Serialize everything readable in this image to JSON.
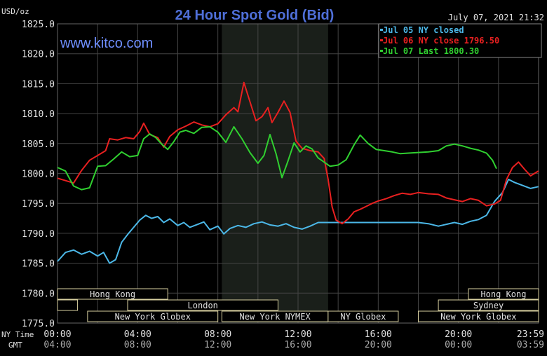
{
  "header": {
    "title": "24 Hour Spot Gold (Bid)",
    "unit": "USD/oz",
    "timestamp": "July 07, 2021 21:32",
    "brand": "www.kitco.com"
  },
  "colors": {
    "background": "#000000",
    "grid": "#444444",
    "title": "#4f6fd8",
    "brand": "#6f8fff",
    "text": "#e0e0e0",
    "shade": "#1a1f1a",
    "session": "#d8d0a0"
  },
  "time_axis": {
    "ny_label": "NY Time",
    "gmt_label": "GMT",
    "ny_ticks": [
      "00:00",
      "04:00",
      "08:00",
      "12:00",
      "16:00",
      "20:00",
      "23:59"
    ],
    "gmt_ticks": [
      "04:00",
      "08:00",
      "12:00",
      "16:00",
      "20:00",
      "00:00",
      "03:59"
    ]
  },
  "sessions": [
    {
      "label": "Hong Kong",
      "start": 0,
      "end": 5.5,
      "row": 0
    },
    {
      "label": "Hong Kong",
      "start": 20.5,
      "end": 24,
      "row": 0
    },
    {
      "label": "",
      "start": 0,
      "end": 1,
      "row": 1
    },
    {
      "label": "",
      "start": 3.5,
      "end": 5.5,
      "row": 1
    },
    {
      "label": "London",
      "start": 3.5,
      "end": 11,
      "row": 1
    },
    {
      "label": "Sydney",
      "start": 19,
      "end": 24,
      "row": 1
    },
    {
      "label": "New York Globex",
      "start": 1.5,
      "end": 8,
      "row": 2
    },
    {
      "label": "New York NYMEX",
      "start": 8.2,
      "end": 13.5,
      "row": 2
    },
    {
      "label": "NY Globex",
      "start": 13.5,
      "end": 17,
      "row": 2
    },
    {
      "label": "New York Globex",
      "start": 18,
      "end": 24,
      "row": 2
    }
  ],
  "chart_data": {
    "type": "line",
    "title": "24 Hour Spot Gold (Bid)",
    "ylabel": "USD/oz",
    "xlim": [
      0,
      24
    ],
    "ylim": [
      1775,
      1825
    ],
    "yticks": [
      "1775.0",
      "1780.0",
      "1785.0",
      "1790.0",
      "1795.0",
      "1800.0",
      "1805.0",
      "1810.0",
      "1815.0",
      "1820.0",
      "1825.0"
    ],
    "grid": true,
    "shaded_x": [
      8.2,
      13.5
    ],
    "legend_position": "top-right",
    "legend": [
      "Jul 05 NY closed",
      "Jul 06 NY close 1796.50",
      "Jul 07 Last 1800.30"
    ],
    "series": [
      {
        "name": "Jul 05 NY closed",
        "color": "#4cb8e8",
        "points": [
          [
            0,
            1785.3
          ],
          [
            0.4,
            1786.8
          ],
          [
            0.8,
            1787.2
          ],
          [
            1.2,
            1786.5
          ],
          [
            1.6,
            1787.0
          ],
          [
            2.0,
            1786.2
          ],
          [
            2.3,
            1786.8
          ],
          [
            2.6,
            1785.0
          ],
          [
            2.9,
            1785.6
          ],
          [
            3.2,
            1788.5
          ],
          [
            3.5,
            1789.8
          ],
          [
            3.8,
            1791.0
          ],
          [
            4.1,
            1792.2
          ],
          [
            4.4,
            1793.0
          ],
          [
            4.7,
            1792.5
          ],
          [
            5.0,
            1792.8
          ],
          [
            5.3,
            1791.8
          ],
          [
            5.6,
            1792.4
          ],
          [
            6.0,
            1791.3
          ],
          [
            6.3,
            1791.8
          ],
          [
            6.6,
            1791.0
          ],
          [
            7.0,
            1791.5
          ],
          [
            7.3,
            1791.9
          ],
          [
            7.6,
            1790.6
          ],
          [
            8.0,
            1791.2
          ],
          [
            8.3,
            1789.9
          ],
          [
            8.6,
            1790.8
          ],
          [
            9.0,
            1791.3
          ],
          [
            9.4,
            1791.0
          ],
          [
            9.8,
            1791.6
          ],
          [
            10.2,
            1791.9
          ],
          [
            10.6,
            1791.4
          ],
          [
            11.0,
            1791.2
          ],
          [
            11.4,
            1791.6
          ],
          [
            11.8,
            1791.0
          ],
          [
            12.2,
            1790.7
          ],
          [
            12.6,
            1791.2
          ],
          [
            13.0,
            1791.8
          ],
          [
            13.5,
            1791.8
          ],
          [
            15.0,
            1791.8
          ],
          [
            17.0,
            1791.8
          ],
          [
            18.0,
            1791.8
          ],
          [
            18.5,
            1791.6
          ],
          [
            19.0,
            1791.2
          ],
          [
            19.4,
            1791.5
          ],
          [
            19.8,
            1791.8
          ],
          [
            20.2,
            1791.5
          ],
          [
            20.6,
            1792.0
          ],
          [
            21.0,
            1792.3
          ],
          [
            21.4,
            1793.0
          ],
          [
            21.8,
            1795.3
          ],
          [
            22.2,
            1796.8
          ],
          [
            22.5,
            1799.0
          ],
          [
            22.8,
            1798.5
          ],
          [
            23.2,
            1798.0
          ],
          [
            23.6,
            1797.5
          ],
          [
            23.99,
            1797.8
          ]
        ]
      },
      {
        "name": "Jul 06 NY close 1796.50",
        "color": "#e82020",
        "points": [
          [
            0,
            1799.2
          ],
          [
            0.4,
            1798.8
          ],
          [
            0.8,
            1798.4
          ],
          [
            1.2,
            1800.5
          ],
          [
            1.6,
            1802.2
          ],
          [
            2.0,
            1803.0
          ],
          [
            2.4,
            1803.8
          ],
          [
            2.6,
            1805.8
          ],
          [
            3.0,
            1805.6
          ],
          [
            3.4,
            1806.0
          ],
          [
            3.8,
            1805.8
          ],
          [
            4.1,
            1807.0
          ],
          [
            4.3,
            1808.4
          ],
          [
            4.6,
            1806.5
          ],
          [
            5.0,
            1806.0
          ],
          [
            5.3,
            1804.4
          ],
          [
            5.6,
            1806.2
          ],
          [
            6.0,
            1807.3
          ],
          [
            6.4,
            1807.9
          ],
          [
            6.8,
            1808.6
          ],
          [
            7.2,
            1808.1
          ],
          [
            7.6,
            1807.8
          ],
          [
            8.0,
            1808.3
          ],
          [
            8.4,
            1809.8
          ],
          [
            8.8,
            1811.0
          ],
          [
            9.0,
            1810.3
          ],
          [
            9.3,
            1815.2
          ],
          [
            9.6,
            1812.0
          ],
          [
            9.9,
            1808.8
          ],
          [
            10.2,
            1809.5
          ],
          [
            10.5,
            1811.0
          ],
          [
            10.7,
            1808.5
          ],
          [
            11.0,
            1810.2
          ],
          [
            11.3,
            1812.1
          ],
          [
            11.6,
            1810.2
          ],
          [
            11.9,
            1805.4
          ],
          [
            12.2,
            1804.2
          ],
          [
            12.6,
            1803.8
          ],
          [
            13.0,
            1803.6
          ],
          [
            13.3,
            1802.5
          ],
          [
            13.5,
            1799.0
          ],
          [
            13.7,
            1794.4
          ],
          [
            13.9,
            1792.2
          ],
          [
            14.2,
            1791.6
          ],
          [
            14.5,
            1792.4
          ],
          [
            14.8,
            1793.6
          ],
          [
            15.1,
            1794.0
          ],
          [
            15.4,
            1794.5
          ],
          [
            15.7,
            1795.0
          ],
          [
            16.0,
            1795.4
          ],
          [
            16.4,
            1795.8
          ],
          [
            16.8,
            1796.3
          ],
          [
            17.2,
            1796.7
          ],
          [
            17.6,
            1796.5
          ],
          [
            18.0,
            1796.8
          ],
          [
            18.5,
            1796.6
          ],
          [
            19.0,
            1796.5
          ],
          [
            19.4,
            1795.9
          ],
          [
            19.8,
            1795.6
          ],
          [
            20.2,
            1795.3
          ],
          [
            20.6,
            1795.8
          ],
          [
            21.0,
            1795.5
          ],
          [
            21.4,
            1794.6
          ],
          [
            21.8,
            1794.9
          ],
          [
            22.1,
            1795.5
          ],
          [
            22.4,
            1799.0
          ],
          [
            22.7,
            1801.0
          ],
          [
            23.0,
            1801.9
          ],
          [
            23.3,
            1800.7
          ],
          [
            23.6,
            1799.6
          ],
          [
            23.99,
            1800.4
          ]
        ]
      },
      {
        "name": "Jul 07 Last 1800.30",
        "color": "#30d030",
        "points": [
          [
            0,
            1801.0
          ],
          [
            0.4,
            1800.4
          ],
          [
            0.8,
            1797.9
          ],
          [
            1.2,
            1797.3
          ],
          [
            1.6,
            1797.6
          ],
          [
            2.0,
            1801.2
          ],
          [
            2.4,
            1801.3
          ],
          [
            2.8,
            1802.4
          ],
          [
            3.2,
            1803.6
          ],
          [
            3.6,
            1802.8
          ],
          [
            4.0,
            1803.0
          ],
          [
            4.3,
            1805.8
          ],
          [
            4.6,
            1806.6
          ],
          [
            4.9,
            1806.0
          ],
          [
            5.2,
            1804.9
          ],
          [
            5.5,
            1804.0
          ],
          [
            5.8,
            1805.3
          ],
          [
            6.1,
            1806.9
          ],
          [
            6.4,
            1807.2
          ],
          [
            6.8,
            1806.7
          ],
          [
            7.2,
            1807.7
          ],
          [
            7.6,
            1807.8
          ],
          [
            8.0,
            1806.9
          ],
          [
            8.4,
            1805.2
          ],
          [
            8.8,
            1807.8
          ],
          [
            9.2,
            1805.8
          ],
          [
            9.6,
            1803.5
          ],
          [
            10.0,
            1801.7
          ],
          [
            10.3,
            1803.0
          ],
          [
            10.6,
            1806.5
          ],
          [
            10.9,
            1803.3
          ],
          [
            11.2,
            1799.3
          ],
          [
            11.5,
            1802.1
          ],
          [
            11.8,
            1805.1
          ],
          [
            12.1,
            1803.6
          ],
          [
            12.4,
            1804.6
          ],
          [
            12.7,
            1804.1
          ],
          [
            13.0,
            1802.6
          ],
          [
            13.3,
            1801.9
          ],
          [
            13.6,
            1801.2
          ],
          [
            14.0,
            1801.4
          ],
          [
            14.4,
            1802.3
          ],
          [
            14.8,
            1804.8
          ],
          [
            15.1,
            1806.4
          ],
          [
            15.5,
            1805.0
          ],
          [
            15.9,
            1804.0
          ],
          [
            16.3,
            1803.8
          ],
          [
            16.7,
            1803.6
          ],
          [
            17.1,
            1803.3
          ],
          [
            17.5,
            1803.4
          ],
          [
            18.0,
            1803.5
          ],
          [
            18.5,
            1803.6
          ],
          [
            19.0,
            1803.8
          ],
          [
            19.4,
            1804.6
          ],
          [
            19.8,
            1804.9
          ],
          [
            20.2,
            1804.6
          ],
          [
            20.6,
            1804.2
          ],
          [
            21.0,
            1803.9
          ],
          [
            21.4,
            1803.4
          ],
          [
            21.7,
            1802.2
          ],
          [
            21.9,
            1800.8
          ]
        ]
      }
    ]
  }
}
